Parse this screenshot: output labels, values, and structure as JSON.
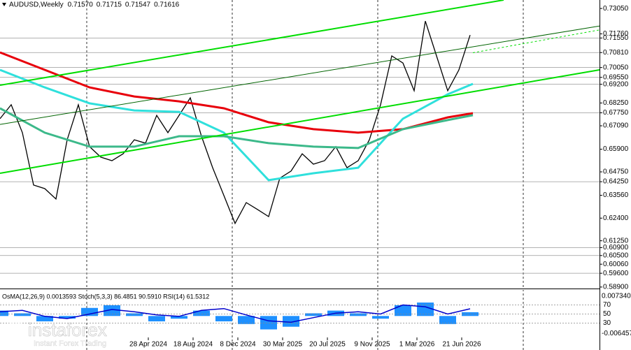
{
  "chart_data": {
    "type": "line",
    "header": {
      "symbol": "AUDUSD,Weekly",
      "values": [
        0.7157,
        0.71715,
        0.71547,
        0.71616
      ],
      "value_labels": [
        "0.71570",
        "0.71715",
        "0.71547",
        "0.71616"
      ]
    },
    "xlim": [
      0,
      214.25
    ],
    "ylim": [
      0.5886,
      0.7348
    ],
    "xticks": [
      {
        "value": 53,
        "label": "28 Apr 2024"
      },
      {
        "value": 69,
        "label": "18 Aug 2024"
      },
      {
        "value": 85,
        "label": "8 Dec 2024"
      },
      {
        "value": 101,
        "label": "30 Mar 2025"
      },
      {
        "value": 117,
        "label": "20 Jul 2025"
      },
      {
        "value": 133,
        "label": "9 Nov 2025"
      },
      {
        "value": 149,
        "label": "1 Mar 2026"
      },
      {
        "value": 165,
        "label": "21 Jun 2026"
      }
    ],
    "xgrid": [
      31,
      83,
      135,
      187
    ],
    "yticks": [
      {
        "value": 0.7305,
        "label": "0.73050"
      },
      {
        "value": 0.7176,
        "label": "0.71760"
      },
      {
        "value": 0.7155,
        "label": "0.71550"
      },
      {
        "value": 0.7081,
        "label": "0.70810"
      },
      {
        "value": 0.7005,
        "label": "0.70050"
      },
      {
        "value": 0.6955,
        "label": "0.69550"
      },
      {
        "value": 0.692,
        "label": "0.69200"
      },
      {
        "value": 0.6825,
        "label": "0.68250"
      },
      {
        "value": 0.6775,
        "label": "0.67750"
      },
      {
        "value": 0.6709,
        "label": "0.67090"
      },
      {
        "value": 0.659,
        "label": "0.65900"
      },
      {
        "value": 0.6475,
        "label": "0.64750"
      },
      {
        "value": 0.6425,
        "label": "0.64250"
      },
      {
        "value": 0.6356,
        "label": "0.63560"
      },
      {
        "value": 0.624,
        "label": "0.62400"
      },
      {
        "value": 0.6125,
        "label": "0.61250"
      },
      {
        "value": 0.609,
        "label": "0.60900"
      },
      {
        "value": 0.605,
        "label": "0.60500"
      },
      {
        "value": 0.6006,
        "label": "0.60060"
      },
      {
        "value": 0.596,
        "label": "0.59600"
      },
      {
        "value": 0.589,
        "label": "0.58900"
      }
    ],
    "levels": [
      0.7155,
      0.7081,
      0.7005,
      0.6955,
      0.692,
      0.6775,
      0.6425,
      0.609,
      0.605,
      0.596
    ],
    "series": [
      {
        "color": "#000000",
        "width": 1.3,
        "x": [
          0,
          4,
          8,
          12,
          16,
          20,
          24,
          28,
          32,
          36,
          40,
          44,
          48,
          52,
          56,
          60,
          64,
          68,
          72,
          76,
          80,
          84,
          88,
          92,
          96,
          100,
          104,
          108,
          112,
          116,
          120,
          124,
          128,
          132,
          136,
          140,
          144,
          148,
          152,
          156,
          160,
          164,
          168
        ],
        "values": [
          0.6745,
          0.6816,
          0.6674,
          0.6408,
          0.639,
          0.6337,
          0.6638,
          0.6816,
          0.6603,
          0.655,
          0.6532,
          0.6567,
          0.6638,
          0.6621,
          0.6762,
          0.6674,
          0.6762,
          0.6851,
          0.6656,
          0.6496,
          0.6355,
          0.6213,
          0.6319,
          0.6284,
          0.6248,
          0.6443,
          0.6479,
          0.6567,
          0.6514,
          0.6532,
          0.6603,
          0.6496,
          0.6532,
          0.6638,
          0.6816,
          0.7064,
          0.7028,
          0.6887,
          0.7241,
          0.7064,
          0.6887,
          0.6993,
          0.717
        ]
      },
      {
        "color": "#e8000b",
        "width": 3,
        "x": [
          0,
          16,
          32,
          48,
          64,
          80,
          96,
          112,
          128,
          144,
          160,
          169
        ],
        "values": [
          0.7082,
          0.6993,
          0.6904,
          0.6858,
          0.6833,
          0.6798,
          0.6727,
          0.6692,
          0.6674,
          0.6692,
          0.6752,
          0.6773
        ]
      },
      {
        "color": "#2fe0dc",
        "width": 3,
        "x": [
          0,
          16,
          32,
          48,
          64,
          80,
          96,
          112,
          128,
          144,
          160,
          169
        ],
        "values": [
          0.6993,
          0.6904,
          0.6823,
          0.6787,
          0.678,
          0.6674,
          0.6433,
          0.6468,
          0.6496,
          0.6745,
          0.6869,
          0.6922
        ]
      },
      {
        "color": "#3cb98a",
        "width": 3,
        "x": [
          0,
          16,
          32,
          48,
          64,
          80,
          96,
          112,
          128,
          144,
          160,
          169
        ],
        "values": [
          0.6798,
          0.6674,
          0.6603,
          0.6603,
          0.6656,
          0.6656,
          0.6621,
          0.6603,
          0.6596,
          0.6692,
          0.6738,
          0.6763
        ]
      },
      {
        "color": "#00dd00",
        "width": 2,
        "x": [
          0,
          180
        ],
        "values": [
          0.6915,
          0.7348
        ]
      },
      {
        "color": "#006400",
        "width": 1,
        "x": [
          0,
          214.25
        ],
        "values": [
          0.6716,
          0.7216
        ]
      },
      {
        "color": "#00dd00",
        "width": 2,
        "x": [
          0,
          214.25
        ],
        "values": [
          0.6468,
          0.6993
        ]
      },
      {
        "color": "#00dd00",
        "width": 1,
        "dashed": true,
        "x": [
          169,
          214.25
        ],
        "values": [
          0.708,
          0.7196
        ]
      }
    ],
    "indicator": {
      "text": "OsMA(12,26,9) 0.0013593 Stoch(5,3,3) 86.4851 90.5910 RSI(14) 61.5312",
      "osma": {
        "color": "#1e90ff",
        "ylim": [
          -0.0124,
          0.0097
        ],
        "x": [
          0,
          8,
          16,
          24,
          32,
          40,
          48,
          56,
          64,
          72,
          80,
          88,
          96,
          104,
          112,
          120,
          128,
          136,
          144,
          152,
          160,
          168
        ],
        "values": [
          0.002,
          0.001,
          -0.002,
          -0.001,
          0.003,
          0.004,
          0.001,
          -0.002,
          -0.001,
          0.002,
          -0.002,
          -0.003,
          -0.005,
          -0.004,
          0.001,
          0.002,
          0.001,
          -0.001,
          0.004,
          0.005,
          -0.003,
          0.0014
        ],
        "ticks": [
          {
            "value": 0.00734,
            "label": "0.0073400"
          },
          {
            "value": -0.006457,
            "label": "-0.006457"
          }
        ]
      },
      "rsi": {
        "color": "#0000cc",
        "ylim": [
          0,
          100
        ],
        "x": [
          0,
          8,
          16,
          24,
          32,
          40,
          48,
          56,
          64,
          72,
          80,
          88,
          96,
          104,
          112,
          120,
          128,
          136,
          144,
          152,
          160,
          168
        ],
        "values": [
          55,
          58,
          45,
          40,
          50,
          60,
          55,
          48,
          45,
          58,
          62,
          48,
          35,
          32,
          42,
          52,
          55,
          50,
          70,
          66,
          50,
          61.5
        ],
        "ticks": [
          70,
          50,
          30
        ]
      }
    },
    "watermark": {
      "brand": "instaforex",
      "tagline": "Instant Forex Trading"
    }
  }
}
